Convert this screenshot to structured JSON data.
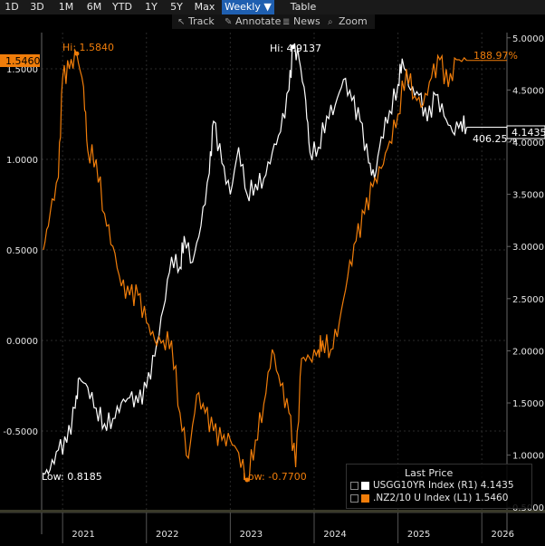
{
  "toolbar": {
    "ranges": [
      "1D",
      "3D",
      "1M",
      "6M",
      "YTD",
      "1Y",
      "5Y",
      "Max"
    ],
    "frequency": "Weekly ▼",
    "table": "Table",
    "track": "Track",
    "annotate": "Annotate",
    "news": "News",
    "zoom": "Zoom"
  },
  "colors": {
    "background": "#000000",
    "white_series": "#ffffff",
    "orange_series": "#f07d0a",
    "selected_tab": "#1f5fb0"
  },
  "annotations": {
    "nz_high": "Hi: 1.5840",
    "nz_low": "Low: -0.7700",
    "us_high": "Hi: 4.9137",
    "us_low": "Low: 0.8185",
    "nz_last_badge": "1.5460",
    "us_last_badge": "4.1435",
    "orange_pct": "188.97%",
    "white_pct": "406.25%"
  },
  "legend": {
    "title": "Last Price",
    "items": [
      {
        "text": "USGG10YR Index  (R1) 4.1435",
        "color": "#ffffff"
      },
      {
        "text": ".NZ2/10 U Index  (L1) 1.5460",
        "color": "#f07d0a"
      }
    ]
  },
  "chart_data": {
    "type": "line",
    "left_axis": {
      "ticks": [
        "1.5000",
        "1.0000",
        "0.5000",
        "0.0000",
        "-0.5000"
      ],
      "range": [
        -0.95,
        1.7
      ]
    },
    "right_axis": {
      "ticks": [
        "5.0000",
        "4.5000",
        "4.0000",
        "3.5000",
        "3.0000",
        "2.5000",
        "2.0000",
        "1.5000",
        "1.0000",
        "0.5000"
      ],
      "range": [
        0.45,
        5.05
      ]
    },
    "x_axis": {
      "labels": [
        "2021",
        "2022",
        "2023",
        "2024",
        "2025",
        "2026"
      ],
      "range": [
        2020.75,
        2026.3
      ]
    },
    "grid": true,
    "series": [
      {
        "name": "USGG10YR Index",
        "axis": "right",
        "color": "#ffffff",
        "x": [
          2020.77,
          2020.85,
          2020.95,
          2021.05,
          2021.15,
          2021.2,
          2021.3,
          2021.4,
          2021.5,
          2021.6,
          2021.7,
          2021.8,
          2021.9,
          2022.0,
          2022.1,
          2022.2,
          2022.3,
          2022.4,
          2022.45,
          2022.55,
          2022.65,
          2022.75,
          2022.8,
          2022.9,
          2023.0,
          2023.1,
          2023.2,
          2023.3,
          2023.4,
          2023.5,
          2023.6,
          2023.7,
          2023.75,
          2023.82,
          2023.9,
          2023.95,
          2024.05,
          2024.15,
          2024.25,
          2024.35,
          2024.45,
          2024.55,
          2024.65,
          2024.72,
          2024.8,
          2024.9,
          2025.0,
          2025.05,
          2025.15,
          2025.25,
          2025.35,
          2025.45,
          2025.55,
          2025.65,
          2025.75,
          2025.82
        ],
        "y": [
          0.82,
          0.86,
          1.05,
          1.12,
          1.45,
          1.74,
          1.65,
          1.45,
          1.3,
          1.35,
          1.5,
          1.55,
          1.5,
          1.65,
          1.95,
          2.4,
          2.9,
          2.8,
          3.1,
          2.85,
          3.2,
          3.7,
          4.2,
          3.8,
          3.5,
          3.95,
          3.5,
          3.6,
          3.65,
          3.9,
          4.1,
          4.5,
          4.91,
          4.8,
          4.4,
          3.9,
          3.95,
          4.25,
          4.35,
          4.6,
          4.4,
          4.2,
          3.8,
          3.65,
          4.05,
          4.3,
          4.55,
          4.8,
          4.5,
          4.45,
          4.2,
          4.45,
          4.25,
          4.1,
          4.2,
          4.1435
        ]
      },
      {
        "name": ".NZ2/10 U Index",
        "axis": "left",
        "color": "#f07d0a",
        "x": [
          2020.77,
          2020.85,
          2020.95,
          2021.0,
          2021.08,
          2021.17,
          2021.25,
          2021.3,
          2021.4,
          2021.5,
          2021.6,
          2021.7,
          2021.8,
          2021.9,
          2022.0,
          2022.1,
          2022.2,
          2022.3,
          2022.4,
          2022.5,
          2022.6,
          2022.7,
          2022.8,
          2022.9,
          2023.0,
          2023.1,
          2023.2,
          2023.3,
          2023.4,
          2023.5,
          2023.6,
          2023.7,
          2023.78,
          2023.85,
          2023.95,
          2024.05,
          2024.1,
          2024.2,
          2024.3,
          2024.4,
          2024.5,
          2024.6,
          2024.7,
          2024.8,
          2024.9,
          2025.0,
          2025.1,
          2025.2,
          2025.3,
          2025.4,
          2025.5,
          2025.6,
          2025.7,
          2025.82
        ],
        "y": [
          0.5,
          0.7,
          0.9,
          1.45,
          1.5,
          1.58,
          1.4,
          1.05,
          1.0,
          0.7,
          0.52,
          0.3,
          0.25,
          0.25,
          0.1,
          0.0,
          0.0,
          0.0,
          -0.4,
          -0.65,
          -0.3,
          -0.4,
          -0.5,
          -0.55,
          -0.55,
          -0.62,
          -0.77,
          -0.55,
          -0.35,
          -0.05,
          -0.25,
          -0.4,
          -0.7,
          -0.1,
          -0.1,
          -0.05,
          0.0,
          -0.05,
          0.1,
          0.35,
          0.55,
          0.7,
          0.85,
          0.95,
          1.1,
          1.25,
          1.5,
          1.35,
          1.3,
          1.45,
          1.55,
          1.4,
          1.55,
          1.546
        ]
      }
    ]
  }
}
